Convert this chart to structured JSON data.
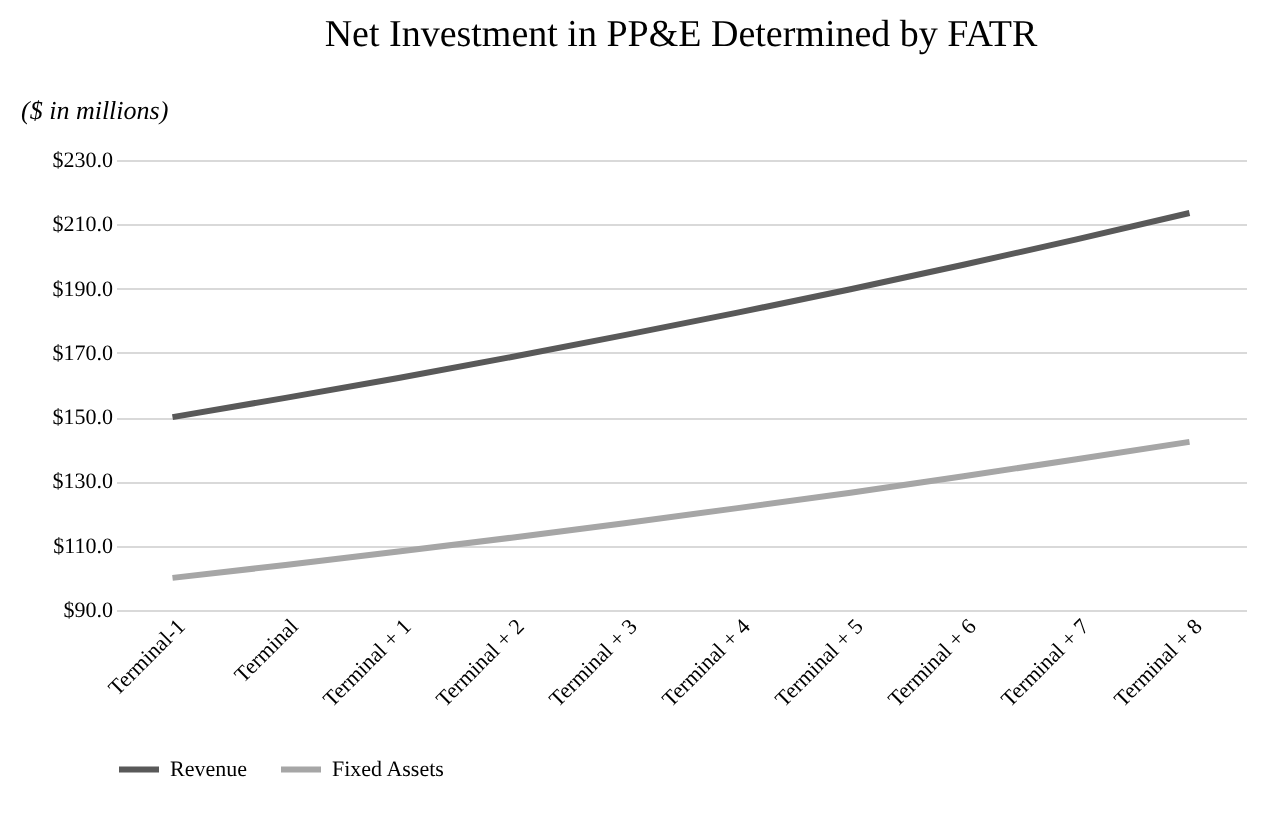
{
  "chart_data": {
    "type": "line",
    "title": "Net Investment in PP&E Determined by FATR",
    "ylabel": "($ in millions)",
    "categories": [
      "Terminal-1",
      "Terminal",
      "Terminal + 1",
      "Terminal + 2",
      "Terminal + 3",
      "Terminal + 4",
      "Terminal + 5",
      "Terminal + 6",
      "Terminal + 7",
      "Terminal + 8"
    ],
    "series": [
      {
        "name": "Revenue",
        "color": "#595959",
        "values": [
          150,
          156,
          162.2,
          168.7,
          175.5,
          182.5,
          189.8,
          197.4,
          205.3,
          213.5
        ]
      },
      {
        "name": "Fixed Assets",
        "color": "#a6a6a6",
        "values": [
          100,
          104,
          108.2,
          112.5,
          117,
          121.7,
          126.5,
          131.6,
          136.9,
          142.3
        ]
      }
    ],
    "ylim": [
      90,
      230
    ],
    "yticks": [
      {
        "value": 90,
        "label": "$90.0"
      },
      {
        "value": 110,
        "label": "$110.0"
      },
      {
        "value": 130,
        "label": "$130.0"
      },
      {
        "value": 150,
        "label": "$150.0"
      },
      {
        "value": 170,
        "label": "$170.0"
      },
      {
        "value": 190,
        "label": "$190.0"
      },
      {
        "value": 210,
        "label": "$210.0"
      },
      {
        "value": 230,
        "label": "$230.0"
      }
    ],
    "grid": "y",
    "legend": "bottom",
    "marker": "none",
    "line_style": "solid"
  }
}
